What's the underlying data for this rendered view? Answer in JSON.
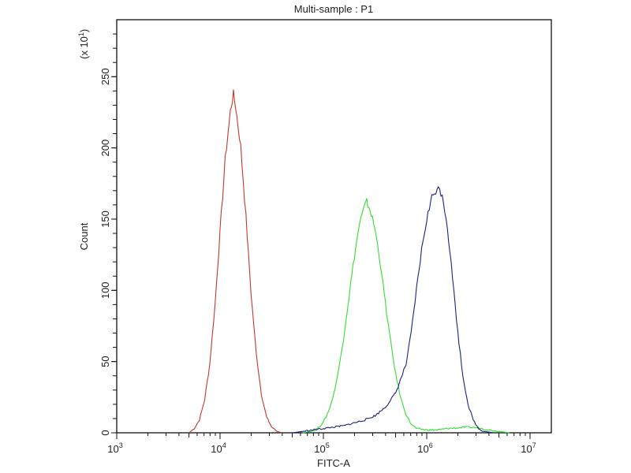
{
  "chart_data": {
    "type": "line",
    "title": "Multi-sample : P1",
    "xlabel": "FITC-A",
    "ylabel": "Count",
    "y_multiplier": "(x 10",
    "y_multiplier_exp": "1",
    "y_multiplier_close": ")",
    "x_scale": "log10",
    "xlim_log10": [
      3,
      7.2
    ],
    "ylim": [
      0,
      290
    ],
    "x_ticks": [
      {
        "base": "10",
        "exp": "3"
      },
      {
        "base": "10",
        "exp": "4"
      },
      {
        "base": "10",
        "exp": "5"
      },
      {
        "base": "10",
        "exp": "6"
      },
      {
        "base": "10",
        "exp": "7"
      }
    ],
    "y_ticks": [
      "0",
      "50",
      "100",
      "150",
      "200",
      "250"
    ],
    "series": [
      {
        "name": "red",
        "color": "#c0392f",
        "points": [
          [
            3.7,
            0
          ],
          [
            3.75,
            3
          ],
          [
            3.8,
            9
          ],
          [
            3.85,
            23
          ],
          [
            3.9,
            48
          ],
          [
            3.95,
            89
          ],
          [
            4.0,
            141
          ],
          [
            4.05,
            192
          ],
          [
            4.1,
            226
          ],
          [
            4.13,
            238
          ],
          [
            4.15,
            229
          ],
          [
            4.2,
            201
          ],
          [
            4.25,
            152
          ],
          [
            4.3,
            98
          ],
          [
            4.35,
            56
          ],
          [
            4.4,
            27
          ],
          [
            4.45,
            11
          ],
          [
            4.5,
            4
          ],
          [
            4.55,
            1
          ],
          [
            4.6,
            0
          ]
        ]
      },
      {
        "name": "green",
        "color": "#33dd33",
        "points": [
          [
            4.8,
            0
          ],
          [
            4.9,
            1.5
          ],
          [
            4.95,
            3.5
          ],
          [
            5.0,
            7.5
          ],
          [
            5.05,
            15
          ],
          [
            5.1,
            27
          ],
          [
            5.15,
            45
          ],
          [
            5.2,
            69
          ],
          [
            5.25,
            97
          ],
          [
            5.3,
            124
          ],
          [
            5.35,
            147
          ],
          [
            5.4,
            159
          ],
          [
            5.42,
            162
          ],
          [
            5.45,
            157
          ],
          [
            5.5,
            143
          ],
          [
            5.55,
            120
          ],
          [
            5.6,
            91
          ],
          [
            5.65,
            64
          ],
          [
            5.7,
            41
          ],
          [
            5.75,
            24
          ],
          [
            5.8,
            13
          ],
          [
            5.85,
            6
          ],
          [
            5.9,
            3
          ],
          [
            6.0,
            2
          ],
          [
            6.1,
            2
          ],
          [
            6.2,
            3
          ],
          [
            6.3,
            3.5
          ],
          [
            6.4,
            4
          ],
          [
            6.5,
            3.5
          ],
          [
            6.6,
            2
          ],
          [
            6.7,
            1
          ],
          [
            6.8,
            0
          ]
        ]
      },
      {
        "name": "blue",
        "color": "#1a2380",
        "points": [
          [
            4.7,
            0
          ],
          [
            4.8,
            1
          ],
          [
            4.9,
            2
          ],
          [
            5.0,
            3
          ],
          [
            5.1,
            4
          ],
          [
            5.2,
            5
          ],
          [
            5.3,
            7
          ],
          [
            5.4,
            9
          ],
          [
            5.5,
            12
          ],
          [
            5.6,
            18
          ],
          [
            5.7,
            28
          ],
          [
            5.8,
            48
          ],
          [
            5.85,
            70
          ],
          [
            5.9,
            100
          ],
          [
            5.95,
            128
          ],
          [
            6.0,
            150
          ],
          [
            6.05,
            165
          ],
          [
            6.1,
            172
          ],
          [
            6.15,
            168
          ],
          [
            6.2,
            145
          ],
          [
            6.25,
            109
          ],
          [
            6.3,
            71
          ],
          [
            6.35,
            40
          ],
          [
            6.4,
            20
          ],
          [
            6.45,
            9
          ],
          [
            6.5,
            3
          ],
          [
            6.55,
            1
          ],
          [
            6.6,
            0.5
          ],
          [
            6.65,
            0
          ]
        ]
      }
    ],
    "grid": false,
    "legend": "none"
  }
}
